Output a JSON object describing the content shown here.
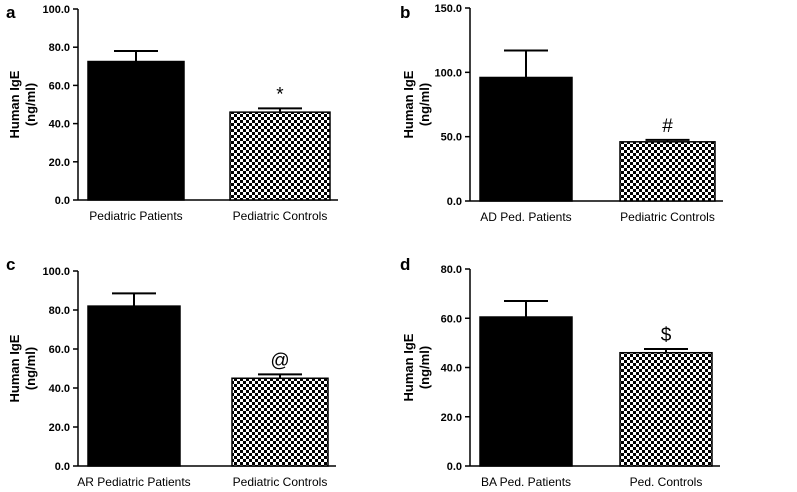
{
  "chart_data": [
    {
      "type": "bar",
      "panel": "a",
      "categories": [
        "Pediatric Patients",
        "Pediatric Controls"
      ],
      "values": [
        72.5,
        46.0
      ],
      "errors": [
        5.5,
        2.0
      ],
      "ylabel_line1": "Human IgE",
      "ylabel_line2": "(ng/ml)",
      "ylim": [
        0,
        100
      ],
      "yticks": [
        0,
        20,
        40,
        60,
        80,
        100
      ],
      "tick_labels": [
        "0.0",
        "20.0",
        "40.0",
        "60.0",
        "80.0",
        "100.0"
      ],
      "annotation": "*",
      "fills": [
        "solid",
        "checker"
      ],
      "grid": false
    },
    {
      "type": "bar",
      "panel": "b",
      "categories": [
        "AD Ped. Patients",
        "Pediatric Controls"
      ],
      "values": [
        96.0,
        46.0
      ],
      "errors": [
        21.0,
        1.5
      ],
      "ylabel_line1": "Human IgE",
      "ylabel_line2": "(ng/ml)",
      "ylim": [
        0,
        150
      ],
      "yticks": [
        0,
        50,
        100,
        150
      ],
      "tick_labels": [
        "0.0",
        "50.0",
        "100.0",
        "150.0"
      ],
      "annotation": "#",
      "fills": [
        "solid",
        "checker"
      ],
      "grid": false
    },
    {
      "type": "bar",
      "panel": "c",
      "categories": [
        "AR Pediatric Patients",
        "Pediatric Controls"
      ],
      "values": [
        82.0,
        45.0
      ],
      "errors": [
        6.5,
        2.0
      ],
      "ylabel_line1": "Human IgE",
      "ylabel_line2": "(ng/ml)",
      "ylim": [
        0,
        100
      ],
      "yticks": [
        0,
        20,
        40,
        60,
        80,
        100
      ],
      "tick_labels": [
        "0.0",
        "20.0",
        "40.0",
        "60.0",
        "80.0",
        "100.0"
      ],
      "annotation": "@",
      "fills": [
        "solid",
        "checker"
      ],
      "grid": false
    },
    {
      "type": "bar",
      "panel": "d",
      "categories": [
        "BA Ped. Patients",
        "Ped. Controls"
      ],
      "values": [
        60.5,
        46.0
      ],
      "errors": [
        6.5,
        1.5
      ],
      "ylabel_line1": "Human IgE",
      "ylabel_line2": "(ng/ml)",
      "ylim": [
        0,
        80
      ],
      "yticks": [
        0,
        20,
        40,
        60,
        80
      ],
      "tick_labels": [
        "0.0",
        "20.0",
        "40.0",
        "60.0",
        "80.0"
      ],
      "annotation": "$",
      "fills": [
        "solid",
        "checker"
      ],
      "grid": false
    }
  ],
  "colors": {
    "bar": "#000000",
    "checker_dark": "#000000",
    "checker_light": "#ffffff",
    "axis": "#000000"
  }
}
